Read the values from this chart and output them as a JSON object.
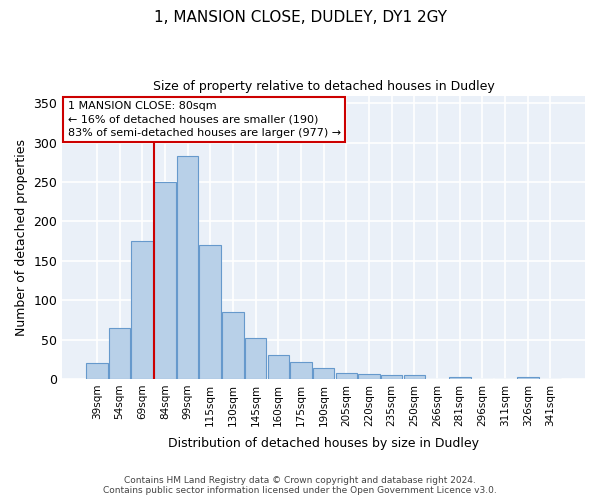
{
  "title": "1, MANSION CLOSE, DUDLEY, DY1 2GY",
  "subtitle": "Size of property relative to detached houses in Dudley",
  "xlabel": "Distribution of detached houses by size in Dudley",
  "ylabel": "Number of detached properties",
  "categories": [
    "39sqm",
    "54sqm",
    "69sqm",
    "84sqm",
    "99sqm",
    "115sqm",
    "130sqm",
    "145sqm",
    "160sqm",
    "175sqm",
    "190sqm",
    "205sqm",
    "220sqm",
    "235sqm",
    "250sqm",
    "266sqm",
    "281sqm",
    "296sqm",
    "311sqm",
    "326sqm",
    "341sqm"
  ],
  "values": [
    20,
    65,
    175,
    250,
    283,
    170,
    85,
    52,
    30,
    22,
    14,
    8,
    6,
    5,
    5,
    0,
    3,
    0,
    0,
    3,
    0
  ],
  "bar_color": "#b8d0e8",
  "bar_edge_color": "#6699cc",
  "background_color": "#eaf0f8",
  "grid_color": "#ffffff",
  "ylim": [
    0,
    360
  ],
  "yticks": [
    0,
    50,
    100,
    150,
    200,
    250,
    300,
    350
  ],
  "ref_line_color": "#cc0000",
  "ref_line_x": 2.5,
  "annotation_text": "1 MANSION CLOSE: 80sqm\n← 16% of detached houses are smaller (190)\n83% of semi-detached houses are larger (977) →",
  "annotation_box_color": "#cc0000",
  "footer_line1": "Contains HM Land Registry data © Crown copyright and database right 2024.",
  "footer_line2": "Contains public sector information licensed under the Open Government Licence v3.0."
}
